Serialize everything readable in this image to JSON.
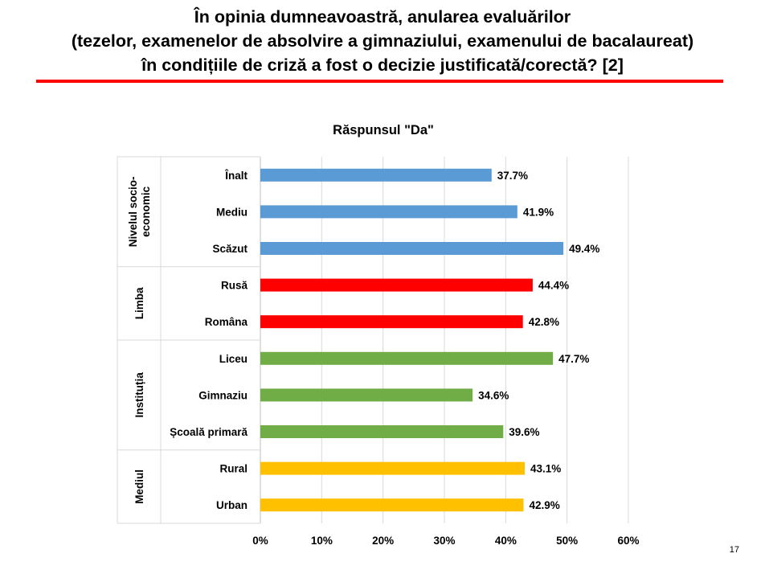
{
  "slide": {
    "title_lines": [
      "În opinia dumneavoastră, anularea evaluărilor",
      "(tezelor, examenelor de absolvire a gimnaziului, examenului de bacalaureat)",
      "în condițiile de criză a fost o decizie justificată/corectă?  [2]"
    ],
    "page_number": "17",
    "title_rule_color": "#ff0000"
  },
  "chart_data": {
    "type": "bar",
    "orientation": "horizontal",
    "title": "Răspunsul \"Da\"",
    "value_unit": "%",
    "xlim": [
      0,
      60
    ],
    "xticks": [
      0,
      10,
      20,
      30,
      40,
      50,
      60
    ],
    "xtick_labels": [
      "0%",
      "10%",
      "20%",
      "30%",
      "40%",
      "50%",
      "60%"
    ],
    "grid": "vertical",
    "groups": [
      {
        "label": "Nivelul socio-economic",
        "label_lines": [
          "Nivelul socio-",
          "economic"
        ],
        "color": "#5b9bd5",
        "categories": [
          "Înalt",
          "Mediu",
          "Scăzut"
        ],
        "values": [
          37.7,
          41.9,
          49.4
        ],
        "value_labels": [
          "37.7%",
          "41.9%",
          "49.4%"
        ]
      },
      {
        "label": "Limba",
        "label_lines": [
          "Limba"
        ],
        "color": "#ff0000",
        "categories": [
          "Rusă",
          "Româna"
        ],
        "values": [
          44.4,
          42.8
        ],
        "value_labels": [
          "44.4%",
          "42.8%"
        ]
      },
      {
        "label": "Instituția",
        "label_lines": [
          "Instituția"
        ],
        "color": "#70ad47",
        "categories": [
          "Liceu",
          "Gimnaziu",
          "Școală primară"
        ],
        "values": [
          47.7,
          34.6,
          39.6
        ],
        "value_labels": [
          "47.7%",
          "34.6%",
          "39.6%"
        ]
      },
      {
        "label": "Mediul",
        "label_lines": [
          "Mediul"
        ],
        "color": "#ffc000",
        "categories": [
          "Rural",
          "Urban"
        ],
        "values": [
          43.1,
          42.9
        ],
        "value_labels": [
          "43.1%",
          "42.9%"
        ]
      }
    ]
  }
}
